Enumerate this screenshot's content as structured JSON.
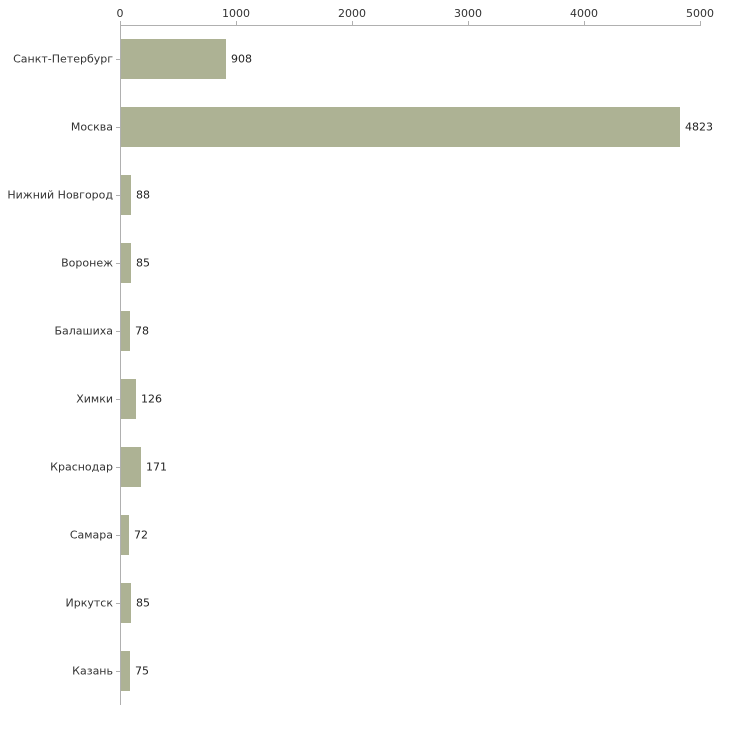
{
  "chart_data": {
    "type": "bar",
    "orientation": "horizontal",
    "title": "",
    "xlabel": "",
    "ylabel": "",
    "categories": [
      "Санкт-Петербург",
      "Москва",
      "Нижний Новгород",
      "Воронеж",
      "Балашиха",
      "Химки",
      "Краснодар",
      "Самара",
      "Иркутск",
      "Казань"
    ],
    "values": [
      908,
      4823,
      88,
      85,
      78,
      126,
      171,
      72,
      85,
      75
    ],
    "x_ticks": [
      0,
      1000,
      2000,
      3000,
      4000,
      5000
    ],
    "xlim": [
      0,
      5000
    ],
    "grid": false,
    "legend": "none",
    "bar_color": "#adb294",
    "axis_color": "#b0b0b0",
    "text_color": "#333333",
    "background_color": "#ffffff"
  }
}
